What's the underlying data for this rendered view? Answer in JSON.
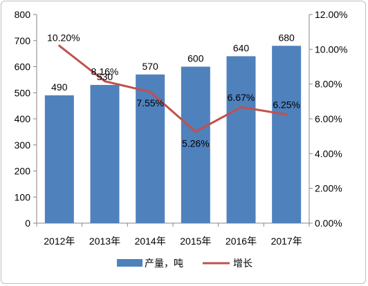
{
  "chart_data": {
    "type": "bar+line",
    "categories": [
      "2012年",
      "2013年",
      "2014年",
      "2015年",
      "2016年",
      "2017年"
    ],
    "series": [
      {
        "name": "产量，吨",
        "type": "bar",
        "axis": "left",
        "color": "#4f81bd",
        "values": [
          490,
          530,
          570,
          600,
          640,
          680
        ],
        "labels": [
          "490",
          "530",
          "570",
          "600",
          "640",
          "680"
        ]
      },
      {
        "name": "增长",
        "type": "line",
        "axis": "right",
        "color": "#c0504d",
        "values": [
          10.2,
          8.16,
          7.55,
          5.26,
          6.67,
          6.25
        ],
        "labels": [
          "10.20%",
          "8.16%",
          "7.55%",
          "5.26%",
          "6.67%",
          "6.25%"
        ]
      }
    ],
    "y_left": {
      "min": 0,
      "max": 800,
      "step": 100,
      "ticks": [
        "0",
        "100",
        "200",
        "300",
        "400",
        "500",
        "600",
        "700",
        "800"
      ]
    },
    "y_right": {
      "min": 0,
      "max": 12,
      "step": 2,
      "ticks": [
        "0.00%",
        "2.00%",
        "4.00%",
        "6.00%",
        "8.00%",
        "10.00%",
        "12.00%"
      ]
    },
    "grid": false,
    "legend": {
      "position": "bottom",
      "entries": [
        "产量，吨",
        "增长"
      ]
    }
  }
}
